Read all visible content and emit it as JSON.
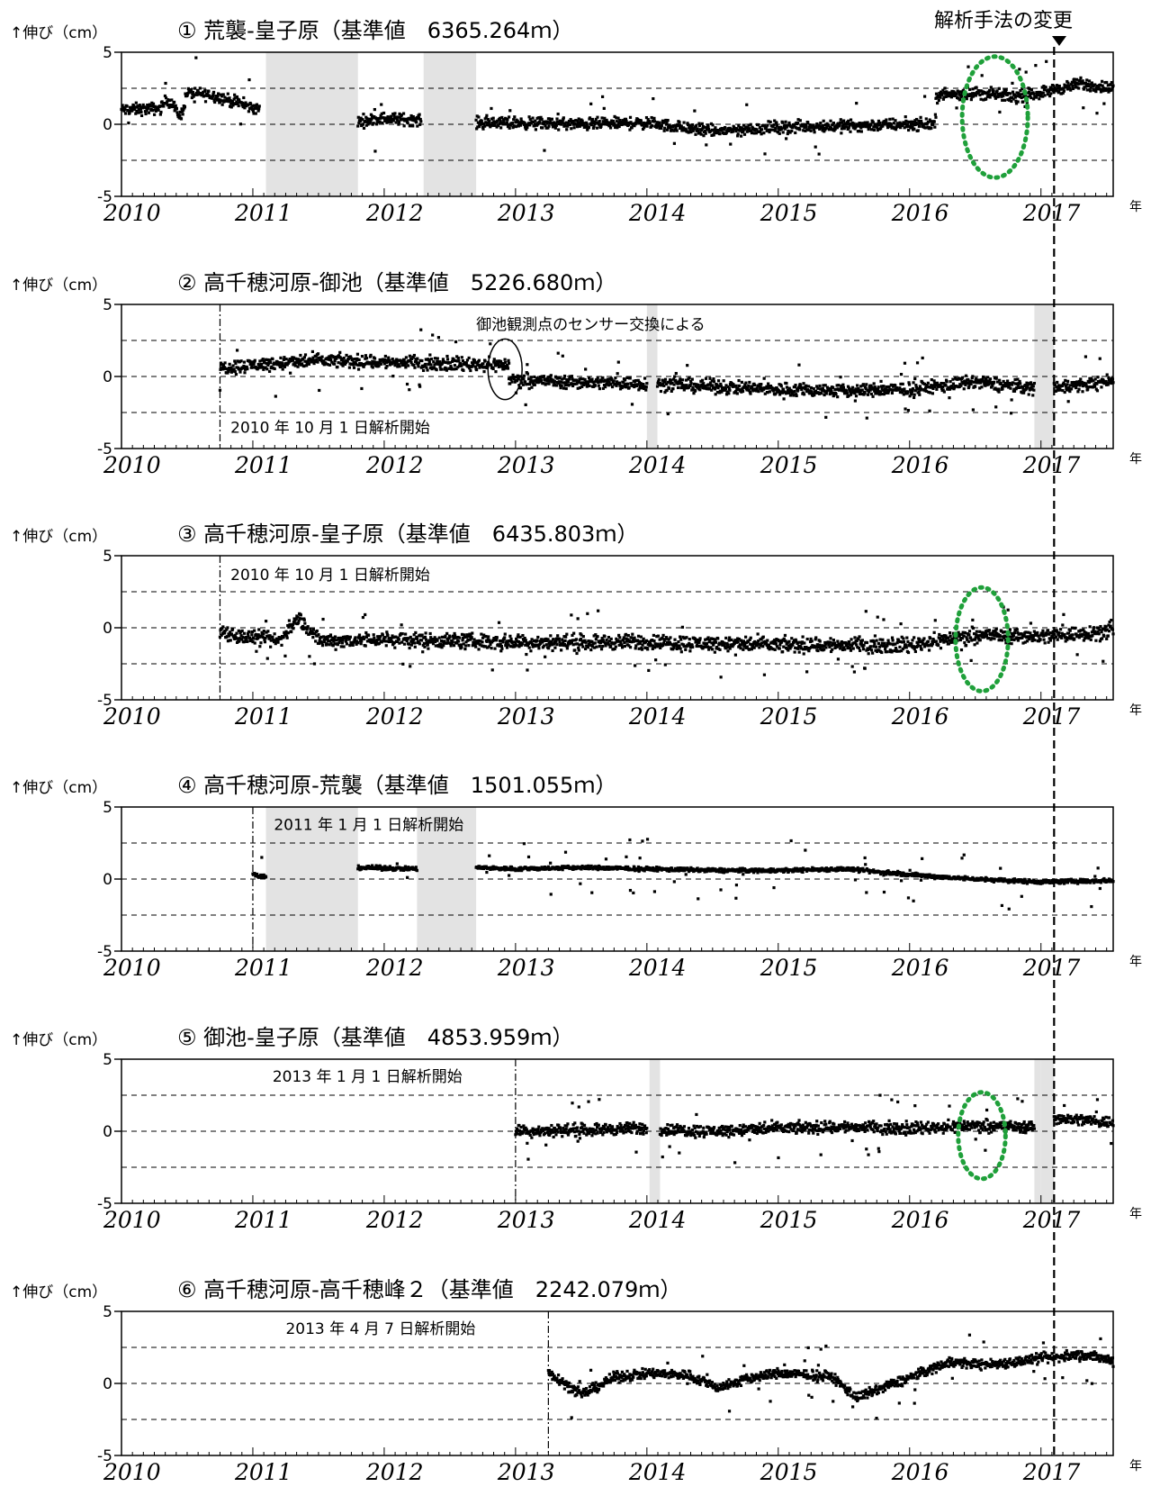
{
  "header": {
    "method_change_label": "解析手法の変更",
    "method_change_year": 2017.1
  },
  "chart_data": [
    {
      "type": "scatter",
      "title": "① 荒襲-皇子原（基準値　6365.264ｍ）",
      "ylabel": "↑伸び（cm）",
      "xlabel": "年",
      "xlim": [
        2010,
        2017.55
      ],
      "ylim": [
        -5,
        5
      ],
      "x_ticks": [
        2010,
        2011,
        2012,
        2013,
        2014,
        2015,
        2016,
        2017
      ],
      "y_ticks": [
        5,
        0,
        -5
      ],
      "reference_lines": [
        2.5,
        0,
        -2.5
      ],
      "gaps": [
        [
          2011.1,
          2011.8
        ],
        [
          2012.3,
          2012.7
        ]
      ],
      "segments": [
        {
          "x": [
            2010.0,
            2010.3,
            2010.35,
            2010.45,
            2010.5,
            2010.7,
            2011.05
          ],
          "y": [
            1.0,
            1.1,
            1.8,
            0.5,
            2.2,
            2.0,
            1.0
          ]
        },
        {
          "x": [
            2011.8,
            2012.0,
            2012.28
          ],
          "y": [
            0.2,
            0.4,
            0.3
          ]
        },
        {
          "x": [
            2012.7,
            2013.0,
            2013.5,
            2014.0,
            2014.5,
            2015.0,
            2015.5,
            2016.0,
            2016.2
          ],
          "y": [
            0.1,
            0.1,
            0.0,
            0.1,
            -0.5,
            -0.2,
            -0.1,
            0.0,
            0.0
          ]
        },
        {
          "x": [
            2016.2,
            2016.5,
            2016.8,
            2017.0,
            2017.3,
            2017.55
          ],
          "y": [
            2.0,
            2.2,
            1.9,
            2.2,
            2.8,
            2.5
          ]
        }
      ],
      "vlines": [],
      "annotations": [],
      "highlight": {
        "cx": 2016.65,
        "cy": 0.5,
        "rx": 0.25,
        "ry": 4.2
      }
    },
    {
      "type": "scatter",
      "title": "② 高千穂河原-御池（基準値　5226.680ｍ）",
      "ylabel": "↑伸び（cm）",
      "xlabel": "年",
      "xlim": [
        2010,
        2017.55
      ],
      "ylim": [
        -5,
        5
      ],
      "x_ticks": [
        2010,
        2011,
        2012,
        2013,
        2014,
        2015,
        2016,
        2017
      ],
      "y_ticks": [
        5,
        0,
        -5
      ],
      "reference_lines": [
        2.5,
        0,
        -2.5
      ],
      "gaps": [
        [
          2014.0,
          2014.08
        ],
        [
          2016.95,
          2017.1
        ]
      ],
      "segments": [
        {
          "x": [
            2010.75,
            2011.0,
            2011.5,
            2012.0,
            2012.5,
            2012.95
          ],
          "y": [
            0.6,
            0.8,
            1.1,
            1.0,
            0.9,
            0.8
          ]
        },
        {
          "x": [
            2012.95,
            2013.5,
            2014.0
          ],
          "y": [
            -0.2,
            -0.4,
            -0.5
          ]
        },
        {
          "x": [
            2014.08,
            2014.5,
            2015.0,
            2015.5,
            2016.0,
            2016.5,
            2016.95
          ],
          "y": [
            -0.5,
            -0.7,
            -0.9,
            -1.0,
            -0.9,
            -0.4,
            -0.8
          ]
        },
        {
          "x": [
            2017.1,
            2017.3,
            2017.55
          ],
          "y": [
            -0.7,
            -0.6,
            -0.3
          ]
        }
      ],
      "vlines": [
        2010.75
      ],
      "annotations": [
        {
          "text": "2010 年 10 月 1 日解析開始",
          "x": 2010.83,
          "y": -3.9
        },
        {
          "text": "御池観測点のセンサー交換による",
          "x": 2012.7,
          "y": 3.25
        }
      ],
      "circle": {
        "cx": 2012.92,
        "cy": 0.5,
        "rx": 0.13,
        "ry": 2.1
      }
    },
    {
      "type": "scatter",
      "title": "③ 高千穂河原-皇子原（基準値　6435.803ｍ）",
      "ylabel": "↑伸び（cm）",
      "xlabel": "年",
      "xlim": [
        2010,
        2017.55
      ],
      "ylim": [
        -5,
        5
      ],
      "x_ticks": [
        2010,
        2011,
        2012,
        2013,
        2014,
        2015,
        2016,
        2017
      ],
      "y_ticks": [
        5,
        0,
        -5
      ],
      "reference_lines": [
        2.5,
        0,
        -2.5
      ],
      "gaps": [],
      "segments": [
        {
          "x": [
            2010.75,
            2010.9,
            2011.2,
            2011.35,
            2011.5,
            2012.0,
            2012.5,
            2013.0,
            2014.0,
            2015.0,
            2016.0,
            2016.5,
            2017.0,
            2017.3,
            2017.55
          ],
          "y": [
            -0.2,
            -0.6,
            -0.9,
            0.7,
            -0.9,
            -0.8,
            -0.9,
            -1.0,
            -1.0,
            -1.2,
            -1.2,
            -0.5,
            -0.6,
            -0.4,
            -0.2
          ]
        }
      ],
      "vlines": [
        2010.75
      ],
      "annotations": [
        {
          "text": "2010 年 10 月 1 日解析開始",
          "x": 2010.83,
          "y": 3.3
        }
      ],
      "highlight": {
        "cx": 2016.55,
        "cy": -0.8,
        "rx": 0.2,
        "ry": 3.6
      }
    },
    {
      "type": "scatter",
      "title": "④ 高千穂河原-荒襲（基準値　1501.055ｍ）",
      "ylabel": "↑伸び（cm）",
      "xlabel": "年",
      "xlim": [
        2010,
        2017.55
      ],
      "ylim": [
        -5,
        5
      ],
      "x_ticks": [
        2010,
        2011,
        2012,
        2013,
        2014,
        2015,
        2016,
        2017
      ],
      "y_ticks": [
        5,
        0,
        -5
      ],
      "reference_lines": [
        2.5,
        0,
        -2.5
      ],
      "gaps": [
        [
          2011.1,
          2011.8
        ],
        [
          2012.25,
          2012.7
        ]
      ],
      "segments": [
        {
          "x": [
            2011.0,
            2011.1
          ],
          "y": [
            0.3,
            0.1
          ]
        },
        {
          "x": [
            2011.8,
            2012.25
          ],
          "y": [
            0.8,
            0.7
          ]
        },
        {
          "x": [
            2012.7,
            2013.0,
            2013.5,
            2014.0,
            2014.5,
            2015.0,
            2015.5,
            2016.0,
            2016.5,
            2017.0,
            2017.55
          ],
          "y": [
            0.8,
            0.7,
            0.8,
            0.7,
            0.6,
            0.6,
            0.7,
            0.3,
            0.0,
            -0.2,
            -0.1
          ]
        }
      ],
      "vlines": [
        2011.0
      ],
      "annotations": [
        {
          "text": "2011 年 1 月 1 日解析開始",
          "x": 2011.16,
          "y": 3.4
        }
      ]
    },
    {
      "type": "scatter",
      "title": "⑤ 御池-皇子原（基準値　4853.959ｍ）",
      "ylabel": "↑伸び（cm）",
      "xlabel": "年",
      "xlim": [
        2010,
        2017.55
      ],
      "ylim": [
        -5,
        5
      ],
      "x_ticks": [
        2010,
        2011,
        2012,
        2013,
        2014,
        2015,
        2016,
        2017
      ],
      "y_ticks": [
        5,
        0,
        -5
      ],
      "reference_lines": [
        2.5,
        0,
        -2.5
      ],
      "gaps": [
        [
          2014.02,
          2014.1
        ],
        [
          2016.95,
          2017.0
        ],
        [
          2017.0,
          2017.1
        ]
      ],
      "segments": [
        {
          "x": [
            2013.0,
            2013.5,
            2014.0
          ],
          "y": [
            0.0,
            0.1,
            0.2
          ]
        },
        {
          "x": [
            2014.1,
            2014.5,
            2015.0,
            2015.5,
            2016.0,
            2016.5,
            2016.95
          ],
          "y": [
            0.1,
            0.0,
            0.2,
            0.3,
            0.2,
            0.4,
            0.3
          ]
        },
        {
          "x": [
            2017.1,
            2017.3,
            2017.55
          ],
          "y": [
            0.9,
            0.8,
            0.6
          ]
        }
      ],
      "vlines": [
        2013.0
      ],
      "annotations": [
        {
          "text": "2013 年 1 月 1 日解析開始",
          "x": 2011.15,
          "y": 3.45
        }
      ],
      "highlight": {
        "cx": 2016.55,
        "cy": -0.3,
        "rx": 0.18,
        "ry": 3.0
      }
    },
    {
      "type": "scatter",
      "title": "⑥ 高千穂河原-高千穂峰２（基準値　2242.079ｍ）",
      "ylabel": "↑伸び（cm）",
      "xlabel": "年",
      "xlim": [
        2010,
        2017.55
      ],
      "ylim": [
        -5,
        5
      ],
      "x_ticks": [
        2010,
        2011,
        2012,
        2013,
        2014,
        2015,
        2016,
        2017
      ],
      "y_ticks": [
        5,
        0,
        -5
      ],
      "reference_lines": [
        2.5,
        0,
        -2.5
      ],
      "gaps": [],
      "segments": [
        {
          "x": [
            2013.25,
            2013.5,
            2013.75,
            2014.0,
            2014.3,
            2014.55,
            2014.8,
            2015.0,
            2015.4,
            2015.6,
            2016.0,
            2016.3,
            2016.6,
            2017.0,
            2017.3,
            2017.55
          ],
          "y": [
            0.8,
            -0.8,
            0.4,
            0.7,
            0.6,
            -0.3,
            0.4,
            0.7,
            0.5,
            -1.0,
            0.4,
            1.5,
            1.3,
            1.7,
            2.0,
            1.6
          ]
        }
      ],
      "vlines": [
        2013.25
      ],
      "annotations": [
        {
          "text": "2013 年 4 月 7 日解析開始",
          "x": 2011.25,
          "y": 3.45
        }
      ]
    }
  ]
}
